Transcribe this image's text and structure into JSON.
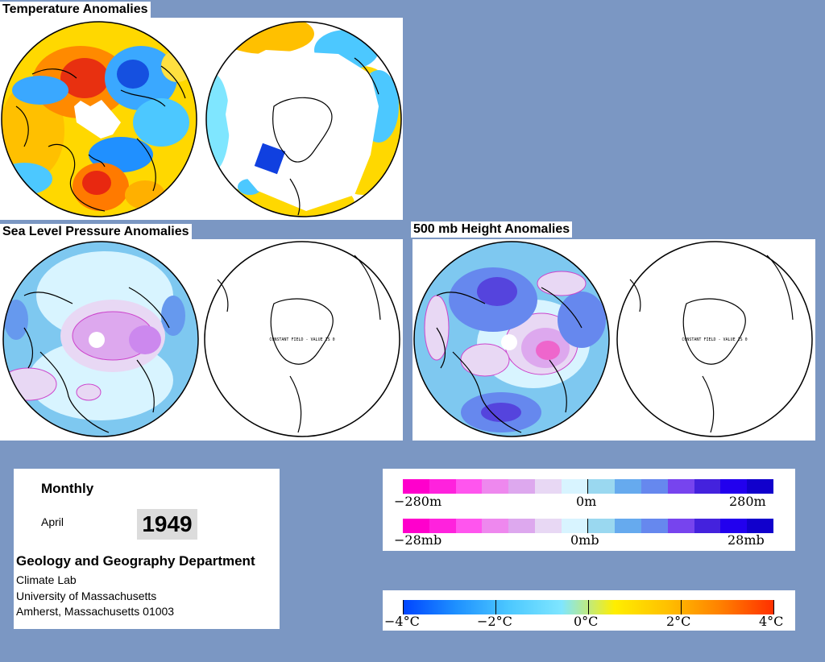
{
  "panels": {
    "temperature": {
      "title": "Temperature Anomalies"
    },
    "slp": {
      "title": "Sea Level Pressure Anomalies",
      "south_note": "CONSTANT FIELD - VALUE IS 0"
    },
    "height": {
      "title": "500 mb Height Anomalies",
      "south_note": "CONSTANT FIELD - VALUE IS 0"
    }
  },
  "info": {
    "period": "Monthly",
    "month": "April",
    "year": "1949",
    "department": "Geology and Geography Department",
    "lines": [
      "Climate Lab",
      "University of Massachusetts",
      "Amherst, Massachusetts 01003"
    ]
  },
  "scales": {
    "height": {
      "left": "−280m",
      "center": "0m",
      "right": "280m"
    },
    "pressure": {
      "left": "−28mb",
      "center": "0mb",
      "right": "28mb"
    },
    "temperature": {
      "labels": [
        "−4°C",
        "−2°C",
        "0°C",
        "2°C",
        "4°C"
      ]
    }
  },
  "colors": {
    "background": "#7b97c3",
    "anomaly_scale": [
      "#ff00cc",
      "#ff22dd",
      "#ff55ee",
      "#ee88ee",
      "#dda8ee",
      "#e8d8f4",
      "#d8f4ff",
      "#9ad8f0",
      "#66aaee",
      "#6688ee",
      "#7744ee",
      "#4422dd",
      "#2200ee",
      "#1100cc"
    ],
    "temp_scale": [
      "#0044ff",
      "#1e90ff",
      "#4cc8ff",
      "#7fe6ff",
      "#ffee00",
      "#ffc000",
      "#ff8000",
      "#ff3000"
    ]
  }
}
